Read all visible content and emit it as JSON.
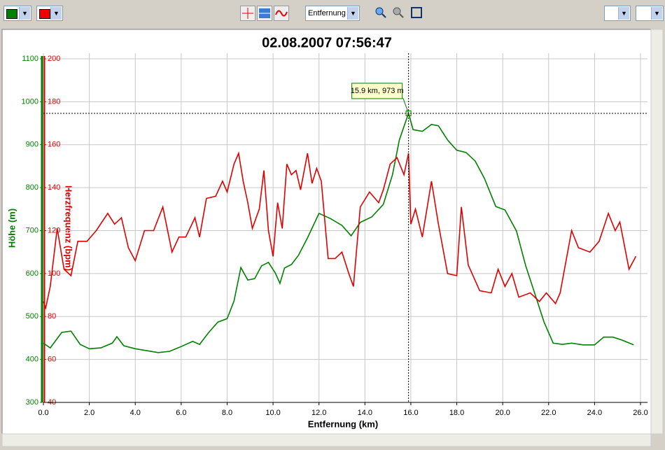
{
  "toolbar": {
    "mode": "Entfernung"
  },
  "chart_data": {
    "type": "line",
    "title": "02.08.2007 07:56:47",
    "xlabel": "Entfernung (km)",
    "ylabel": "Höhe (m)",
    "y2label": "Herzfrequenz (bpm)",
    "xlim": [
      0,
      26
    ],
    "xticks": [
      {
        "value": 0,
        "label": "0.0"
      },
      {
        "value": 2,
        "label": "2.0"
      },
      {
        "value": 4,
        "label": "4.0"
      },
      {
        "value": 6,
        "label": "6.0"
      },
      {
        "value": 8,
        "label": "8.0"
      },
      {
        "value": 10,
        "label": "10.0"
      },
      {
        "value": 12,
        "label": "12.0"
      },
      {
        "value": 14,
        "label": "14.0"
      },
      {
        "value": 16,
        "label": "16.0"
      },
      {
        "value": 18,
        "label": "18.0"
      },
      {
        "value": 20,
        "label": "20.0"
      },
      {
        "value": 22,
        "label": "22.0"
      },
      {
        "value": 24,
        "label": "24.0"
      },
      {
        "value": 26,
        "label": "26.0"
      }
    ],
    "ylim": [
      300,
      1100
    ],
    "yticks": [
      300,
      400,
      500,
      600,
      700,
      800,
      900,
      1000,
      1100
    ],
    "y2lim": [
      40,
      200
    ],
    "y2ticks": [
      40,
      60,
      80,
      100,
      120,
      140,
      160,
      180,
      200
    ],
    "ycolor": "#008000",
    "y2color": "#e00000",
    "grid": true,
    "series": [
      {
        "color": "#008000",
        "axis": "y",
        "x": [
          0,
          0.3,
          0.8,
          1.2,
          1.6,
          2.0,
          2.5,
          3.0,
          3.2,
          3.5,
          4.0,
          5.0,
          5.5,
          6.0,
          6.5,
          6.8,
          7.2,
          7.6,
          8.0,
          8.3,
          8.6,
          8.9,
          9.2,
          9.5,
          9.8,
          10.1,
          10.3,
          10.5,
          10.8,
          11.1,
          11.5,
          12.0,
          12.5,
          13.0,
          13.4,
          13.8,
          14.3,
          14.8,
          15.2,
          15.5,
          15.9,
          16.1,
          16.5,
          16.9,
          17.2,
          17.6,
          18.0,
          18.4,
          18.8,
          19.2,
          19.7,
          20.1,
          20.6,
          21.0,
          21.4,
          21.8,
          22.2,
          22.6,
          23.0,
          23.5,
          24.0,
          24.4,
          24.8,
          25.2,
          25.7
        ],
        "values": [
          438,
          427,
          463,
          466,
          435,
          425,
          427,
          438,
          453,
          432,
          425,
          416,
          419,
          430,
          442,
          435,
          463,
          487,
          495,
          536,
          614,
          585,
          588,
          618,
          626,
          601,
          577,
          613,
          621,
          642,
          683,
          740,
          728,
          712,
          688,
          719,
          732,
          761,
          830,
          911,
          973,
          935,
          931,
          947,
          944,
          911,
          887,
          882,
          862,
          822,
          756,
          748,
          699,
          618,
          553,
          487,
          438,
          435,
          438,
          434,
          434,
          452,
          452,
          445,
          434
        ]
      },
      {
        "color": "#e00000",
        "axis": "y2",
        "x": [
          0,
          0.1,
          0.3,
          0.6,
          0.9,
          1.2,
          1.5,
          1.9,
          2.3,
          2.8,
          3.1,
          3.4,
          3.7,
          4.0,
          4.4,
          4.8,
          5.2,
          5.6,
          5.9,
          6.2,
          6.6,
          6.8,
          7.1,
          7.5,
          7.8,
          8.0,
          8.3,
          8.5,
          8.7,
          8.9,
          9.1,
          9.4,
          9.6,
          9.8,
          10.0,
          10.2,
          10.4,
          10.6,
          10.8,
          11.0,
          11.2,
          11.5,
          11.7,
          11.9,
          12.1,
          12.4,
          12.7,
          13.0,
          13.3,
          13.5,
          13.8,
          14.2,
          14.6,
          14.8,
          15.1,
          15.4,
          15.7,
          15.9,
          16.0,
          16.2,
          16.5,
          16.9,
          17.2,
          17.6,
          18.0,
          18.2,
          18.5,
          19.0,
          19.5,
          19.8,
          20.1,
          20.4,
          20.7,
          21.2,
          21.6,
          21.9,
          22.3,
          22.5,
          23.0,
          23.3,
          23.8,
          24.2,
          24.6,
          24.9,
          25.1,
          25.5,
          25.8
        ],
        "values": [
          87,
          84,
          94,
          121,
          102,
          99,
          115,
          115,
          120,
          128,
          123,
          126,
          112,
          106,
          120,
          120,
          131,
          110,
          117,
          117,
          126,
          117,
          135,
          136,
          143,
          138,
          151,
          156,
          143,
          133,
          121,
          130,
          148,
          120,
          108,
          133,
          121,
          151,
          146,
          148,
          139,
          156,
          142,
          149,
          143,
          107,
          107,
          110,
          100,
          94,
          131,
          138,
          133,
          139,
          151,
          154,
          146,
          156,
          123,
          130,
          117,
          143,
          123,
          100,
          99,
          131,
          104,
          92,
          91,
          102,
          94,
          100,
          89,
          91,
          87,
          91,
          86,
          91,
          120,
          112,
          110,
          115,
          128,
          120,
          124,
          102,
          108
        ]
      }
    ],
    "cursor": {
      "x": 15.9,
      "y": 973,
      "label": "15.9 km, 973 m"
    }
  }
}
